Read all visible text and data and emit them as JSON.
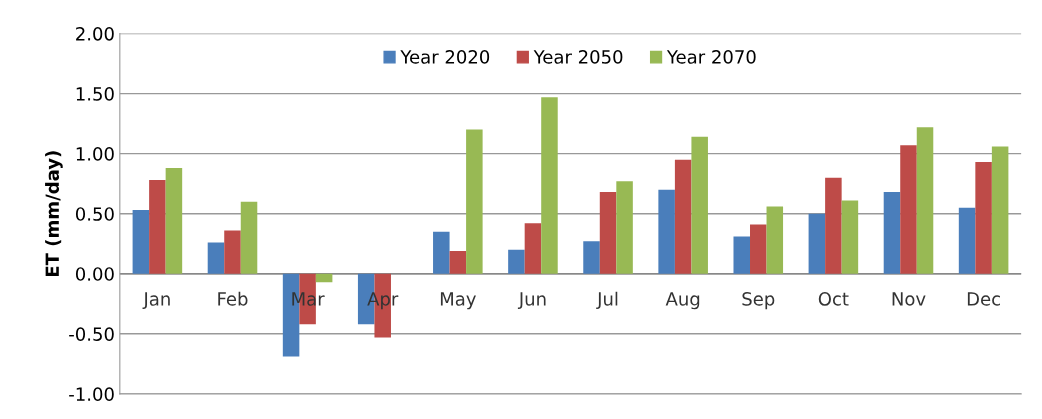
{
  "chart_data": {
    "type": "bar",
    "ylabel": "ET (mm/day)",
    "categories": [
      "Jan",
      "Feb",
      "Mar",
      "Apr",
      "May",
      "Jun",
      "Jul",
      "Aug",
      "Sep",
      "Oct",
      "Nov",
      "Dec"
    ],
    "series": [
      {
        "name": "Year 2020",
        "color": "#4a7ebb",
        "values": [
          0.53,
          0.26,
          -0.69,
          -0.42,
          0.35,
          0.2,
          0.27,
          0.7,
          0.31,
          0.5,
          0.68,
          0.55
        ]
      },
      {
        "name": "Year 2050",
        "color": "#be4b48",
        "values": [
          0.78,
          0.36,
          -0.42,
          -0.53,
          0.19,
          0.42,
          0.68,
          0.95,
          0.41,
          0.8,
          1.07,
          0.93
        ]
      },
      {
        "name": "Year 2070",
        "color": "#98b954",
        "values": [
          0.88,
          0.6,
          -0.07,
          null,
          1.2,
          1.47,
          0.77,
          1.14,
          0.56,
          0.61,
          1.22,
          1.06
        ]
      }
    ],
    "ylim": [
      -1.0,
      2.0
    ],
    "yticks": [
      {
        "value": -1.0,
        "label": "-1.00"
      },
      {
        "value": -0.5,
        "label": "-0.50"
      },
      {
        "value": 0.0,
        "label": "0.00"
      },
      {
        "value": 0.5,
        "label": "0.50"
      },
      {
        "value": 1.0,
        "label": "1.00"
      },
      {
        "value": 1.5,
        "label": "1.50"
      },
      {
        "value": 2.0,
        "label": "2.00"
      }
    ],
    "grid": "y",
    "legend": "top"
  }
}
